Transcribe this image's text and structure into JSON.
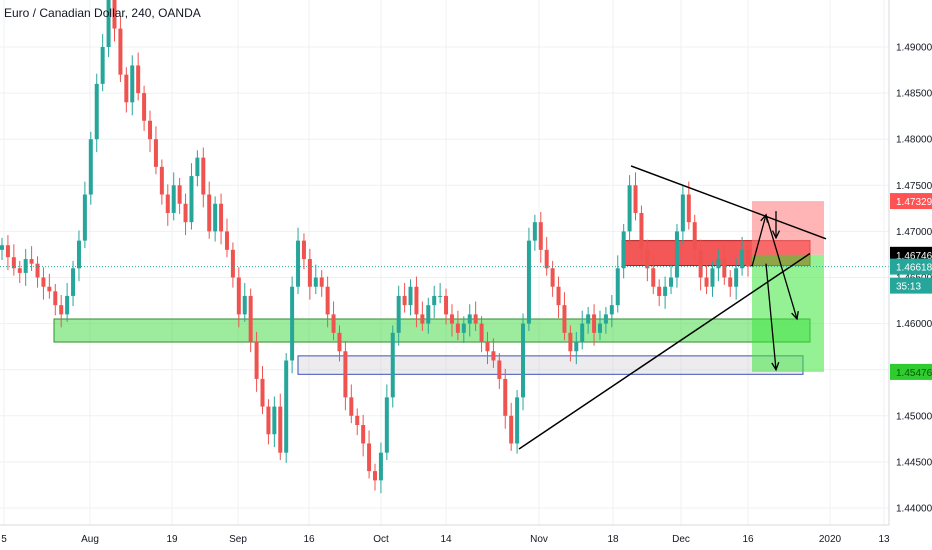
{
  "chart_data": {
    "type": "candlestick",
    "title": "Euro / Canadian Dollar, 240, OANDA",
    "y_ticks": [
      "1.49000",
      "1.48500",
      "1.48000",
      "1.47500",
      "1.47000",
      "1.46500",
      "1.46000",
      "1.45500",
      "1.45000",
      "1.44500",
      "1.44000"
    ],
    "y_tick_values": [
      1.49,
      1.485,
      1.48,
      1.475,
      1.47,
      1.465,
      1.46,
      1.455,
      1.45,
      1.445,
      1.44
    ],
    "x_ticks": [
      "5",
      "Aug",
      "19",
      "Sep",
      "16",
      "Oct",
      "14",
      "Nov",
      "18",
      "Dec",
      "16",
      "2020",
      "13"
    ],
    "ylim": [
      1.4395,
      1.4995
    ],
    "grid": true,
    "price_labels": [
      {
        "name": "stop-loss-label",
        "text": "1.47329",
        "value": 1.47329,
        "color": "#ff5252",
        "text_color": "#ffffff"
      },
      {
        "name": "entry-label",
        "text": "1.46746",
        "value": 1.46746,
        "color": "#000000",
        "text_color": "#ffffff"
      },
      {
        "name": "current-price-label",
        "text": "1.46618",
        "value": 1.46618,
        "color": "#26a69a",
        "text_color": "#ffffff"
      },
      {
        "name": "countdown-label",
        "text": "35:13",
        "value": 1.46412,
        "color": "#26a69a",
        "text_color": "#ffffff"
      },
      {
        "name": "take-profit-label",
        "text": "1.45476",
        "value": 1.45476,
        "color": "#2ecc2e",
        "text_color": "#0a5a0a"
      }
    ],
    "series_approx_close": [
      1.4685,
      1.4672,
      1.466,
      1.4655,
      1.467,
      1.4665,
      1.465,
      1.464,
      1.4635,
      1.462,
      1.461,
      1.463,
      1.466,
      1.469,
      1.474,
      1.48,
      1.486,
      1.49,
      1.496,
      1.492,
      1.487,
      1.484,
      1.488,
      1.485,
      1.482,
      1.48,
      1.477,
      1.474,
      1.472,
      1.475,
      1.473,
      1.471,
      1.476,
      1.478,
      1.474,
      1.47,
      1.473,
      1.47,
      1.468,
      1.465,
      1.461,
      1.463,
      1.458,
      1.454,
      1.451,
      1.448,
      1.451,
      1.446,
      1.456,
      1.464,
      1.469,
      1.467,
      1.464,
      1.465,
      1.464,
      1.461,
      1.459,
      1.457,
      1.452,
      1.45,
      1.449,
      1.447,
      1.444,
      1.443,
      1.446,
      1.452,
      1.459,
      1.463,
      1.462,
      1.464,
      1.461,
      1.46,
      1.462,
      1.463,
      1.463,
      1.461,
      1.46,
      1.459,
      1.46,
      1.461,
      1.46,
      1.458,
      1.457,
      1.456,
      1.454,
      1.45,
      1.447,
      1.452,
      1.46,
      1.469,
      1.471,
      1.468,
      1.466,
      1.464,
      1.462,
      1.459,
      1.457,
      1.458,
      1.46,
      1.461,
      1.459,
      1.46,
      1.461,
      1.462,
      1.466,
      1.47,
      1.475,
      1.472,
      1.468,
      1.466,
      1.464,
      1.463,
      1.464,
      1.465,
      1.47,
      1.474,
      1.471,
      1.468,
      1.465,
      1.464,
      1.466,
      1.467,
      1.465,
      1.464,
      1.466,
      1.468,
      1.4662
    ]
  }
}
